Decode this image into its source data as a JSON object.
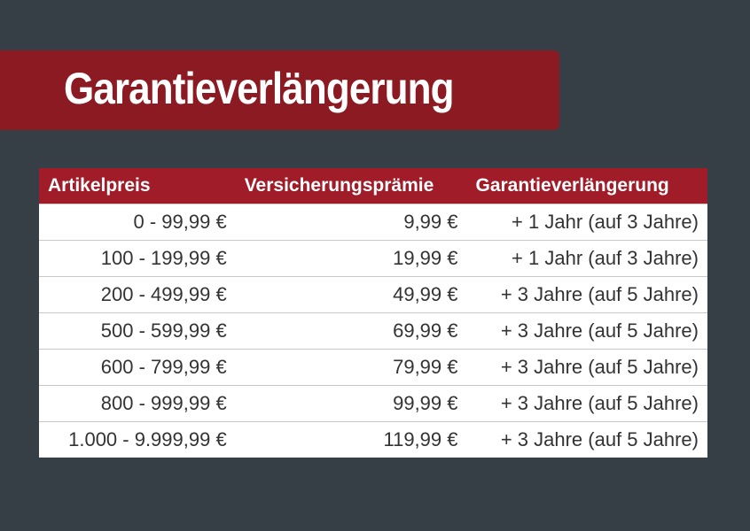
{
  "header": {
    "title": "Garantieverlängerung"
  },
  "table": {
    "columns": [
      "Artikelpreis",
      "Versicherungsprämie",
      "Garantieverlängerung"
    ],
    "rows": [
      [
        "0 - 99,99 €",
        "9,99 €",
        "+ 1 Jahr (auf 3 Jahre)"
      ],
      [
        "100 - 199,99 €",
        "19,99 €",
        "+ 1 Jahr (auf 3 Jahre)"
      ],
      [
        "200 - 499,99 €",
        "49,99 €",
        "+ 3 Jahre (auf 5 Jahre)"
      ],
      [
        "500 - 599,99 €",
        "69,99 €",
        "+ 3 Jahre (auf 5 Jahre)"
      ],
      [
        "600 - 799,99 €",
        "79,99 €",
        "+ 3 Jahre (auf 5 Jahre)"
      ],
      [
        "800 - 999,99 €",
        "99,99 €",
        "+ 3 Jahre (auf 5 Jahre)"
      ],
      [
        "1.000 - 9.999,99 €",
        "119,99 €",
        "+ 3 Jahre (auf 5 Jahre)"
      ]
    ]
  }
}
